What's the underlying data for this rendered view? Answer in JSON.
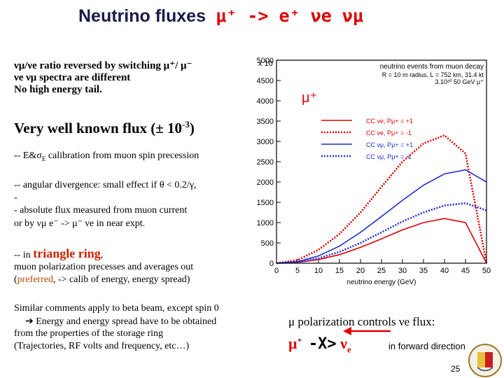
{
  "slide": {
    "title_prefix": "Neutrino fluxes",
    "title_reaction": "μ⁺ -> e⁺ νe νμ",
    "b1": "νμ/νe ratio reversed by switching μ⁺/ μ⁻",
    "b2": "νe νμ spectra are different",
    "b3": "No high energy tail.",
    "big_pre": "Very well known flux (± 10",
    "big_exp": "-3",
    "big_post": ")",
    "l1": "-- E&σ",
    "l1_sub": "E",
    "l1_rest": " calibration from muon spin precession",
    "l2": "-- angular divergence: small effect if θ < 0.2/γ,",
    "l3": "-",
    "l4": "- absolute flux measured from muon current",
    "l5": " or by νμ e⁻ -> μ⁻ νe in near expt.",
    "l6_pre": "-- in",
    "l6_red": "triangle ring",
    "l6_post": ",",
    "l7": "muon polarization precesses and averages out",
    "l8_pre": "(",
    "l8_red": "preferred",
    "l8_post": ", -> calib of energy, energy spread)",
    "p1": "Similar comments apply to beta beam, except spin 0",
    "p2": "Energy and energy spread have to be obtained",
    "p3": "from the properties of the storage ring",
    "p4": "(Trajectories, RF volts and frequency, etc…)",
    "pol_text": "μ polarization controls νe flux:",
    "mu_label": "μ",
    "mu_sup": "+",
    "x_label": "-X>",
    "nu_label": "ν",
    "nu_sub": "e",
    "fwd": "in forward direction",
    "page_num": "25",
    "colors": {
      "red": "#e00000",
      "blue": "#1f2fd0",
      "navy": "#1a1a4e"
    }
  },
  "chart_data": {
    "type": "line",
    "title": "neutrino events from muon decay",
    "info_lines": [
      "R = 10 m radius, L = 752 km, 31.4 kt",
      "3.10²⁰ 50 GeV μ⁺"
    ],
    "particle_label": "μ⁺",
    "scale_label": "x 10",
    "xlabel": "neutrino energy (GeV)",
    "ylabel": "",
    "xlim": [
      0,
      50
    ],
    "ylim": [
      0,
      5000
    ],
    "x_ticks": [
      0,
      5,
      10,
      15,
      20,
      25,
      30,
      35,
      40,
      45,
      50
    ],
    "y_ticks": [
      0,
      500,
      1000,
      1500,
      2000,
      2500,
      3000,
      3500,
      4000,
      4500,
      5000
    ],
    "x_tick_labels": [
      "0",
      "5",
      "10",
      "15",
      "20",
      "25",
      "30",
      "35",
      "40",
      "45",
      "50"
    ],
    "y_tick_labels": [
      "0",
      "500",
      "1000",
      "1500",
      "2000",
      "2500",
      "3000",
      "3500",
      "4000",
      "4500",
      "5000"
    ],
    "grid": false,
    "legend_position": "top-right",
    "x": [
      0,
      5,
      10,
      15,
      20,
      25,
      30,
      35,
      40,
      45,
      50
    ],
    "series": [
      {
        "name": "CC νe, Pμ+ = +1",
        "color": "#e00000",
        "style": "solid",
        "values": [
          0,
          20,
          90,
          210,
          390,
          600,
          820,
          1000,
          1100,
          1000,
          0
        ]
      },
      {
        "name": "CC νe, Pμ+ = -1",
        "color": "#e00000",
        "style": "dotted",
        "values": [
          0,
          80,
          330,
          720,
          1250,
          1880,
          2500,
          2950,
          3150,
          2700,
          0
        ]
      },
      {
        "name": "CC νμ, Pμ+ = +1",
        "color": "#1f2fd0",
        "style": "solid",
        "values": [
          0,
          40,
          180,
          420,
          760,
          1150,
          1550,
          1920,
          2200,
          2300,
          2000
        ]
      },
      {
        "name": "CC νμ, Pμ+ = -1",
        "color": "#1f2fd0",
        "style": "dotted",
        "values": [
          0,
          30,
          120,
          280,
          500,
          760,
          1030,
          1250,
          1420,
          1480,
          1300
        ]
      }
    ]
  }
}
